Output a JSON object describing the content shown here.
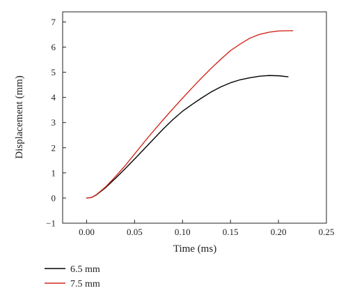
{
  "chart_data": {
    "type": "line",
    "title": "",
    "xlabel": "Time (ms)",
    "ylabel": "Displacement (mm)",
    "xlim": [
      -0.025,
      0.25
    ],
    "ylim": [
      -1,
      7.4
    ],
    "x_ticks": [
      0.0,
      0.05,
      0.1,
      0.15,
      0.2,
      0.25
    ],
    "x_tick_labels": [
      "0.00",
      "0.05",
      "0.10",
      "0.15",
      "0.20",
      "0.25"
    ],
    "y_ticks": [
      -1,
      0,
      1,
      2,
      3,
      4,
      5,
      6,
      7
    ],
    "y_tick_labels": [
      "−1",
      "0",
      "1",
      "2",
      "3",
      "4",
      "5",
      "6",
      "7"
    ],
    "grid": false,
    "legend_position": "below",
    "series": [
      {
        "name": "6.5 mm",
        "color": "#000000",
        "x": [
          0.0,
          0.005,
          0.01,
          0.02,
          0.03,
          0.04,
          0.05,
          0.06,
          0.07,
          0.08,
          0.09,
          0.1,
          0.11,
          0.12,
          0.13,
          0.14,
          0.15,
          0.16,
          0.17,
          0.18,
          0.19,
          0.2,
          0.21
        ],
        "values": [
          0.0,
          0.02,
          0.12,
          0.42,
          0.78,
          1.16,
          1.55,
          1.95,
          2.35,
          2.75,
          3.12,
          3.45,
          3.72,
          3.98,
          4.22,
          4.42,
          4.58,
          4.7,
          4.78,
          4.84,
          4.87,
          4.86,
          4.82
        ]
      },
      {
        "name": "7.5 mm",
        "color": "#d42a1f",
        "x": [
          0.0,
          0.005,
          0.01,
          0.02,
          0.03,
          0.04,
          0.05,
          0.06,
          0.07,
          0.08,
          0.09,
          0.1,
          0.11,
          0.12,
          0.13,
          0.14,
          0.15,
          0.16,
          0.17,
          0.18,
          0.19,
          0.2,
          0.21,
          0.215
        ],
        "values": [
          0.0,
          0.02,
          0.13,
          0.45,
          0.85,
          1.28,
          1.75,
          2.22,
          2.68,
          3.12,
          3.55,
          3.97,
          4.38,
          4.78,
          5.16,
          5.52,
          5.86,
          6.12,
          6.35,
          6.5,
          6.59,
          6.64,
          6.65,
          6.65
        ]
      }
    ]
  }
}
